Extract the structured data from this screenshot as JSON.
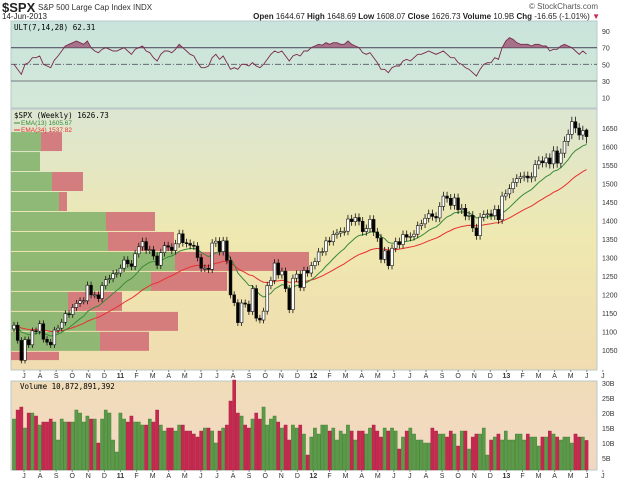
{
  "header": {
    "symbol": "$SPX",
    "description": "S&P 500 Large Cap Index  INDX",
    "date": "14-Jun-2013",
    "brand": "© StockCharts.com",
    "open_label": "Open",
    "open": "1644.67",
    "high_label": "High",
    "high": "1648.69",
    "low_label": "Low",
    "low": "1608.07",
    "close_label": "Close",
    "close": "1626.73",
    "volume_label": "Volume",
    "volume": "10.9B",
    "chg_label": "Chg",
    "chg": "-16.65 (-1.01%)",
    "chg_icon": "down-triangle-icon"
  },
  "colors": {
    "up_volume": "#5a9a48",
    "down_volume": "#c8284f",
    "ema13": "#3a8a3a",
    "ema34": "#e83030",
    "vbp_up": "#7fb06a",
    "vbp_down": "#d06a74",
    "ult": "#7a2a4a"
  },
  "chart_data": [
    {
      "type": "line",
      "panel": "indicator",
      "title": "ULT(7,14,28) 62.31",
      "ylim": [
        10,
        100
      ],
      "yticks": [
        10,
        30,
        50,
        70,
        90
      ],
      "reference_lines": [
        30,
        50,
        70
      ],
      "values": [
        50,
        44,
        38,
        50,
        52,
        58,
        58,
        60,
        50,
        48,
        46,
        55,
        60,
        66,
        72,
        74,
        76,
        78,
        76,
        74,
        78,
        70,
        66,
        64,
        68,
        70,
        68,
        66,
        66,
        68,
        70,
        66,
        62,
        68,
        70,
        72,
        66,
        64,
        58,
        54,
        62,
        66,
        66,
        64,
        68,
        74,
        70,
        66,
        62,
        60,
        52,
        46,
        46,
        48,
        58,
        62,
        56,
        60,
        52,
        44,
        46,
        44,
        50,
        50,
        48,
        52,
        48,
        46,
        50,
        56,
        62,
        66,
        64,
        66,
        60,
        54,
        60,
        62,
        60,
        66,
        66,
        70,
        72,
        74,
        73,
        76,
        74,
        76,
        76,
        74,
        74,
        78,
        74,
        72,
        70,
        64,
        62,
        64,
        58,
        52,
        44,
        44,
        40,
        46,
        48,
        48,
        54,
        56,
        54,
        58,
        62,
        62,
        64,
        66,
        64,
        62,
        64,
        66,
        62,
        58,
        58,
        52,
        50,
        46,
        44,
        40,
        36,
        44,
        50,
        52,
        52,
        58,
        56,
        70,
        78,
        82,
        80,
        76,
        74,
        74,
        74,
        72,
        74,
        74,
        72,
        72,
        66,
        68,
        68,
        72,
        74,
        72,
        70,
        66,
        62,
        66,
        62.31
      ]
    },
    {
      "type": "candlestick",
      "panel": "price",
      "title": "$SPX (Weekly) 1626.73",
      "legend": [
        {
          "name": "EMA(13)",
          "value": "1605.67"
        },
        {
          "name": "EMA(34)",
          "value": "1537.82"
        }
      ],
      "ylim": [
        1010,
        1710
      ],
      "yticks": [
        1050,
        1100,
        1150,
        1200,
        1250,
        1300,
        1350,
        1400,
        1450,
        1500,
        1550,
        1600,
        1650
      ],
      "last_bar": {
        "open": 1644.67,
        "high": 1648.69,
        "low": 1608.07,
        "close": 1626.73
      },
      "close": [
        1117,
        1076,
        1022,
        1078,
        1064,
        1102,
        1101,
        1121,
        1079,
        1071,
        1064,
        1104,
        1109,
        1125,
        1148,
        1146,
        1165,
        1176,
        1183,
        1183,
        1225,
        1199,
        1199,
        1189,
        1224,
        1240,
        1243,
        1256,
        1258,
        1271,
        1293,
        1283,
        1276,
        1310,
        1329,
        1343,
        1320,
        1321,
        1304,
        1279,
        1313,
        1332,
        1328,
        1319,
        1337,
        1364,
        1340,
        1338,
        1333,
        1331,
        1300,
        1271,
        1271,
        1268,
        1339,
        1344,
        1316,
        1345,
        1292,
        1199,
        1178,
        1124,
        1177,
        1174,
        1154,
        1216,
        1136,
        1131,
        1155,
        1224,
        1238,
        1285,
        1253,
        1263,
        1216,
        1159,
        1244,
        1255,
        1219,
        1265,
        1258,
        1278,
        1289,
        1315,
        1316,
        1345,
        1343,
        1362,
        1366,
        1370,
        1371,
        1404,
        1397,
        1408,
        1398,
        1370,
        1378,
        1403,
        1369,
        1353,
        1295,
        1318,
        1278,
        1325,
        1343,
        1335,
        1362,
        1355,
        1357,
        1363,
        1386,
        1391,
        1406,
        1418,
        1411,
        1407,
        1438,
        1466,
        1460,
        1441,
        1461,
        1429,
        1433,
        1412,
        1414,
        1380,
        1359,
        1409,
        1416,
        1418,
        1413,
        1430,
        1402,
        1466,
        1472,
        1486,
        1503,
        1513,
        1518,
        1520,
        1515,
        1518,
        1551,
        1561,
        1556,
        1569,
        1553,
        1588,
        1555,
        1582,
        1614,
        1633,
        1667,
        1650,
        1631,
        1643,
        1626.73
      ],
      "volume_by_price": [
        {
          "range": [
            1585,
            1639
          ],
          "up": 30,
          "down": 21
        },
        {
          "range": [
            1531,
            1585
          ],
          "up": 29,
          "down": 0
        },
        {
          "range": [
            1477,
            1531
          ],
          "up": 41,
          "down": 31
        },
        {
          "range": [
            1423,
            1477
          ],
          "up": 48,
          "down": 8
        },
        {
          "range": [
            1369,
            1423
          ],
          "up": 95,
          "down": 49
        },
        {
          "range": [
            1315,
            1369
          ],
          "up": 97,
          "down": 66
        },
        {
          "range": [
            1261,
            1315
          ],
          "up": 164,
          "down": 134
        },
        {
          "range": [
            1207,
            1261
          ],
          "up": 140,
          "down": 76
        },
        {
          "range": [
            1153,
            1207
          ],
          "up": 57,
          "down": 54
        },
        {
          "range": [
            1099,
            1153
          ],
          "up": 85,
          "down": 82
        },
        {
          "range": [
            1045,
            1099
          ],
          "up": 89,
          "down": 49
        },
        {
          "range": [
            1020,
            1045
          ],
          "up": 0,
          "down": 48
        }
      ]
    },
    {
      "type": "bar",
      "panel": "volume",
      "title": "Volume 10,872,891,392",
      "ylim": [
        0,
        32
      ],
      "yticks": [
        "5B",
        "10B",
        "15B",
        "20B",
        "25B",
        "30B"
      ],
      "values": [
        18,
        21,
        22,
        15,
        20,
        20,
        19,
        16,
        17,
        17,
        18,
        17,
        11,
        18,
        17,
        17,
        17,
        21,
        20,
        17,
        19,
        18,
        18,
        10,
        18,
        21,
        20,
        11,
        7,
        20,
        18,
        17,
        19,
        17,
        17,
        16,
        16,
        18,
        17,
        21,
        16,
        14,
        15,
        15,
        14,
        16,
        16,
        14,
        14,
        13,
        12,
        14,
        15,
        15,
        14,
        10,
        14,
        15,
        16,
        24,
        31,
        20,
        19,
        16,
        15,
        18,
        20,
        18,
        22,
        16,
        18,
        19,
        17,
        15,
        16,
        11,
        16,
        15,
        16,
        13,
        6,
        12,
        15,
        13,
        16,
        16,
        14,
        15,
        11,
        14,
        13,
        16,
        14,
        11,
        14,
        14,
        13,
        15,
        16,
        14,
        12,
        15,
        14,
        15,
        14,
        8,
        12,
        14,
        15,
        13,
        11,
        11,
        10,
        10,
        15,
        14,
        13,
        13,
        12,
        14,
        13,
        9,
        14,
        14,
        8,
        12,
        13,
        13,
        15,
        6,
        11,
        12,
        13,
        11,
        14,
        11,
        11,
        13,
        13,
        11,
        13,
        12,
        12,
        9,
        12,
        12,
        14,
        13,
        12,
        11,
        12,
        12,
        10,
        13,
        12,
        12,
        10.87
      ]
    }
  ],
  "x_axis": {
    "labels": [
      "J",
      "A",
      "S",
      "O",
      "N",
      "D",
      "11",
      "F",
      "M",
      "A",
      "M",
      "J",
      "J",
      "A",
      "S",
      "O",
      "N",
      "D",
      "12",
      "F",
      "M",
      "A",
      "M",
      "J",
      "J",
      "A",
      "S",
      "O",
      "N",
      "D",
      "13",
      "F",
      "M",
      "A",
      "M",
      "J",
      "J"
    ]
  }
}
